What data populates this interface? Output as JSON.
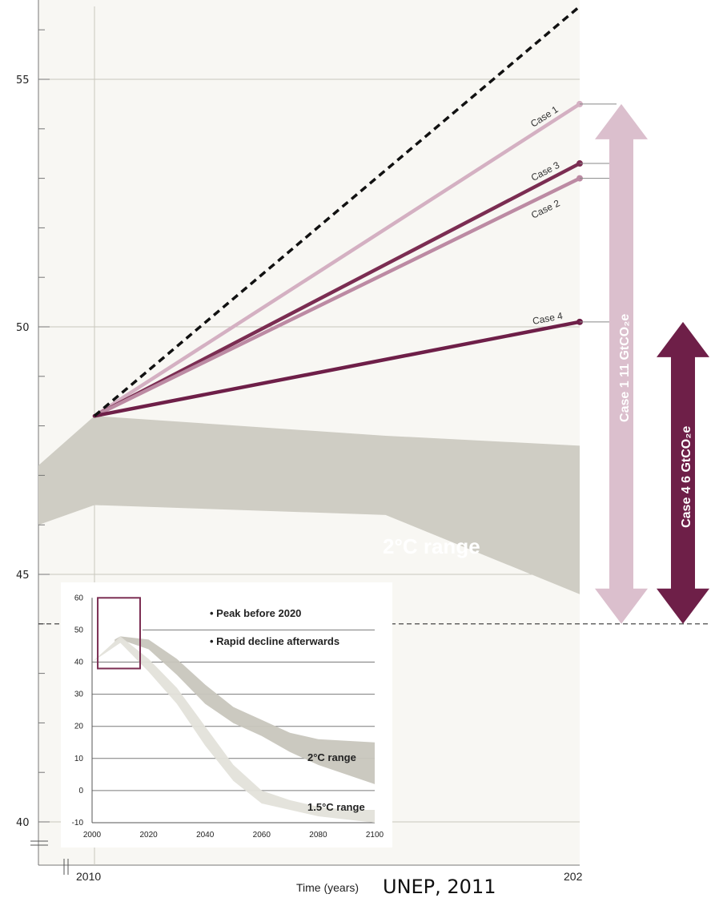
{
  "chart_data": [
    {
      "type": "line",
      "title": "",
      "xlabel": "Time (years)",
      "ylabel": "",
      "x_start_label": "2010",
      "x_end_label": "202",
      "ylim": [
        39.4,
        56.6
      ],
      "y_ticks": [
        40,
        45,
        50,
        55
      ],
      "series": [
        {
          "name": "Case 1",
          "x": [
            2010,
            2020
          ],
          "values": [
            48.2,
            54.5
          ],
          "color": "#d4b0c2"
        },
        {
          "name": "Case 3",
          "x": [
            2010,
            2020
          ],
          "values": [
            48.2,
            53.3
          ],
          "color": "#7b2d52"
        },
        {
          "name": "Case 2",
          "x": [
            2010,
            2020
          ],
          "values": [
            48.2,
            53.0
          ],
          "color": "#bc8aa3"
        },
        {
          "name": "Case 4",
          "x": [
            2010,
            2020
          ],
          "values": [
            48.2,
            50.1
          ],
          "color": "#6e1f48"
        },
        {
          "x": [
            2010,
            2020
          ],
          "values": [
            48.2,
            56.6
          ],
          "color": "#111111",
          "style": "dashed"
        }
      ],
      "band": {
        "label": "2°C range",
        "color": "#cfcdc4",
        "x": [
          2006.6,
          2010,
          2016,
          2020,
          2026
        ],
        "upper": [
          47.2,
          48.2,
          47.8,
          47.6,
          45.6
        ],
        "lower": [
          46.0,
          46.4,
          46.2,
          44.6,
          40.6
        ]
      },
      "threshold_y": 44.0,
      "arrows": [
        {
          "label": "Case 1  11 GtCO₂e",
          "from": 44.0,
          "to": 54.5,
          "color": "#dbbfcd"
        },
        {
          "label": "Case 4  6 GtCO₂e",
          "from": 44.0,
          "to": 50.1,
          "color": "#6e1f48"
        }
      ],
      "source": "UNEP, 2011"
    },
    {
      "type": "area",
      "xlim": [
        2000,
        2100
      ],
      "ylim": [
        -10,
        60
      ],
      "x_ticks": [
        2000,
        2020,
        2040,
        2060,
        2080,
        2100
      ],
      "y_ticks": [
        -10,
        0,
        10,
        20,
        30,
        40,
        50,
        60
      ],
      "annotations": [
        "• Peak before 2020",
        "• Rapid decline afterwards"
      ],
      "highlight_box": {
        "x": [
          2002,
          2017
        ],
        "y": [
          38,
          60
        ],
        "color": "#7b2d52"
      },
      "series": [
        {
          "name": "2°C range",
          "color": "#c8c6bd",
          "x": [
            2008,
            2010,
            2020,
            2030,
            2040,
            2050,
            2060,
            2070,
            2080,
            2090,
            2100
          ],
          "upper": [
            47,
            48,
            47,
            41,
            33,
            26,
            22,
            18,
            16,
            15.5,
            15
          ],
          "lower": [
            46,
            47,
            44,
            36,
            27,
            21,
            17,
            12,
            8,
            5,
            2
          ]
        },
        {
          "name": "1.5°C range",
          "color": "#e3e1da",
          "x": [
            2000,
            2010,
            2020,
            2030,
            2040,
            2050,
            2060,
            2070,
            2080,
            2090,
            2100
          ],
          "upper": [
            40,
            48,
            41,
            32,
            20,
            8,
            0,
            -3,
            -5,
            -6,
            -6
          ],
          "lower": [
            40,
            46,
            37,
            27,
            14,
            3,
            -4,
            -6,
            -8,
            -9,
            -10
          ]
        }
      ]
    }
  ]
}
